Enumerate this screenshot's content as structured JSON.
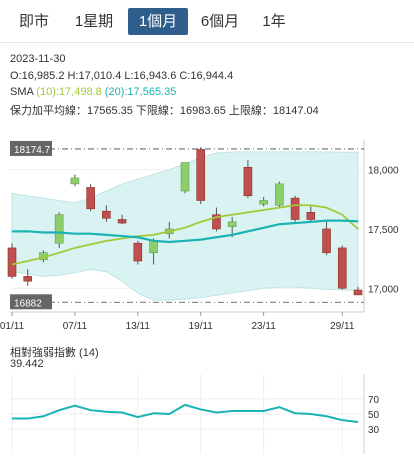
{
  "tabs": [
    {
      "label": "即市",
      "active": false
    },
    {
      "label": "1星期",
      "active": false
    },
    {
      "label": "1個月",
      "active": true
    },
    {
      "label": "6個月",
      "active": false
    },
    {
      "label": "1年",
      "active": false
    }
  ],
  "info": {
    "date": "2023-11-30",
    "ohlc": "O:16,985.2  H:17,010.4  L:16,943.6  C:16,944.4",
    "sma_label": "SMA",
    "sma10": "(10):17,498.8",
    "sma20": "(20):17,565.35",
    "bollinger": "保力加平均線：17565.35 下限線：16983.65 上限線：18147.04"
  },
  "chart": {
    "upper_marker": "18174.7",
    "lower_marker": "16882",
    "y_ticks": [
      "18,000",
      "17,500",
      "17,000"
    ],
    "x_ticks": [
      "01/11",
      "07/11",
      "13/11",
      "19/11",
      "23/11",
      "29/11"
    ]
  },
  "rsi": {
    "title": "相對強弱指數 (14)",
    "value": "39.442",
    "ticks": [
      "70",
      "50",
      "30"
    ]
  },
  "colors": {
    "active_tab": "#2e5e8c",
    "band_fill": "#d9f2f2",
    "candle_down": "#c0504d",
    "candle_up": "#8ccf6a",
    "sma10": "#a3c93a",
    "sma20": "#1bb3b3",
    "rsi_line": "#1bb3b3"
  },
  "chart_data": {
    "type": "candlestick",
    "price_axis": {
      "min": 16800,
      "max": 18250,
      "ticks": [
        18000,
        17500,
        17000
      ]
    },
    "upper_marker": 18174.7,
    "lower_marker": 16882,
    "candles": [
      {
        "o": 17340,
        "h": 17380,
        "l": 17080,
        "c": 17100
      },
      {
        "o": 17100,
        "h": 17160,
        "l": 17020,
        "c": 17060
      },
      {
        "o": 17240,
        "h": 17320,
        "l": 17220,
        "c": 17300
      },
      {
        "o": 17380,
        "h": 17640,
        "l": 17340,
        "c": 17620
      },
      {
        "o": 17880,
        "h": 17960,
        "l": 17860,
        "c": 17930
      },
      {
        "o": 17850,
        "h": 17880,
        "l": 17650,
        "c": 17670
      },
      {
        "o": 17650,
        "h": 17700,
        "l": 17560,
        "c": 17590
      },
      {
        "o": 17580,
        "h": 17620,
        "l": 17540,
        "c": 17550
      },
      {
        "o": 17380,
        "h": 17400,
        "l": 17200,
        "c": 17230
      },
      {
        "o": 17300,
        "h": 17420,
        "l": 17200,
        "c": 17400
      },
      {
        "o": 17460,
        "h": 17560,
        "l": 17420,
        "c": 17500
      },
      {
        "o": 17820,
        "h": 18060,
        "l": 17800,
        "c": 18060
      },
      {
        "o": 18170,
        "h": 18190,
        "l": 17710,
        "c": 17740
      },
      {
        "o": 17620,
        "h": 17680,
        "l": 17480,
        "c": 17500
      },
      {
        "o": 17520,
        "h": 17600,
        "l": 17430,
        "c": 17560
      },
      {
        "o": 18020,
        "h": 18080,
        "l": 17760,
        "c": 17780
      },
      {
        "o": 17710,
        "h": 17770,
        "l": 17690,
        "c": 17740
      },
      {
        "o": 17700,
        "h": 17900,
        "l": 17680,
        "c": 17880
      },
      {
        "o": 17760,
        "h": 17780,
        "l": 17560,
        "c": 17580
      },
      {
        "o": 17640,
        "h": 17700,
        "l": 17560,
        "c": 17580
      },
      {
        "o": 17500,
        "h": 17560,
        "l": 17280,
        "c": 17300
      },
      {
        "o": 17340,
        "h": 17360,
        "l": 16990,
        "c": 17000
      },
      {
        "o": 16985.2,
        "h": 17010.4,
        "l": 16943.6,
        "c": 16944.4
      }
    ],
    "x_labels": [
      "01/11",
      "07/11",
      "13/11",
      "19/11",
      "23/11",
      "29/11"
    ],
    "sma10": [
      17200,
      17230,
      17260,
      17300,
      17340,
      17370,
      17400,
      17420,
      17440,
      17450,
      17480,
      17510,
      17560,
      17600,
      17620,
      17640,
      17660,
      17680,
      17700,
      17700,
      17680,
      17620,
      17498.8
    ],
    "sma20": [
      17480,
      17480,
      17470,
      17470,
      17460,
      17460,
      17450,
      17440,
      17430,
      17400,
      17390,
      17400,
      17410,
      17430,
      17450,
      17480,
      17510,
      17540,
      17550,
      17560,
      17570,
      17570,
      17565.35
    ],
    "boll_upper": [
      17800,
      17780,
      17760,
      17740,
      17720,
      17760,
      17820,
      17880,
      17920,
      17960,
      18000,
      18050,
      18100,
      18140,
      18150,
      18150,
      18150,
      18150,
      18150,
      18150,
      18150,
      18148,
      18147.04
    ],
    "boll_lower": [
      17140,
      17120,
      17100,
      17110,
      17130,
      17160,
      17140,
      17060,
      16960,
      16900,
      16900,
      16910,
      16920,
      16940,
      16960,
      16980,
      17000,
      17010,
      17010,
      17000,
      16990,
      16986,
      16983.65
    ],
    "rsi": {
      "title": "相對強弱指數 (14)",
      "axis": {
        "min": 0,
        "max": 100,
        "ticks": [
          70,
          50,
          30
        ]
      },
      "values": [
        44,
        44,
        47,
        55,
        61,
        55,
        53,
        52,
        46,
        51,
        50,
        62,
        56,
        52,
        54,
        54,
        54,
        59,
        51,
        50,
        47,
        42,
        39.442
      ]
    }
  }
}
